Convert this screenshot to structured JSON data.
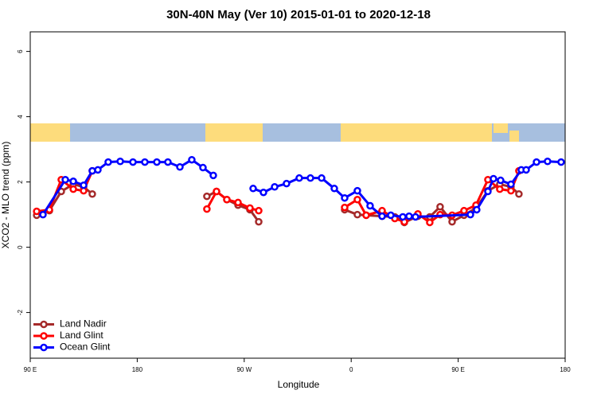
{
  "chart_data": {
    "type": "line",
    "title": "30N-40N May (Ver 10)   2015-01-01 to 2020-12-18",
    "x_label": "Longitude",
    "y_label": "XCO2 - MLO trend (ppm)",
    "xlim": [
      90,
      540
    ],
    "ylim": [
      -3.4,
      6.6
    ],
    "xticks": [
      {
        "value": 90,
        "label": "90 E"
      },
      180,
      {
        "value": 270,
        "label": "90 W"
      },
      {
        "value": 360,
        "label": "0"
      },
      {
        "value": 450,
        "label": "90 E"
      },
      {
        "value": 540,
        "label": "180"
      }
    ],
    "yticks": [
      -2,
      0,
      2,
      4,
      6
    ],
    "legend": "bottom-left",
    "series": [
      {
        "name": "Land Nadir",
        "color": "#a52a2a",
        "x": [
          95.4,
          106.1,
          116.1,
          126.2,
          134.9,
          142.2,
          null,
          238.6,
          246.7,
          255.4,
          264.8,
          274.8,
          282.2,
          null,
          354.5,
          365.2,
          372.6,
          386.0,
          396.7,
          404.7,
          416.1,
          426.1,
          434.8,
          444.9,
          454.9,
          465.0,
          475.0,
          485.0,
          494.4,
          501.1
        ],
        "values": [
          0.98,
          1.12,
          1.71,
          1.93,
          1.85,
          1.63,
          null,
          1.56,
          1.71,
          1.46,
          1.29,
          1.15,
          0.78,
          null,
          1.15,
          1.0,
          0.98,
          0.95,
          0.93,
          0.76,
          0.95,
          0.93,
          1.24,
          0.78,
          0.98,
          1.2,
          1.73,
          1.93,
          1.85,
          1.63
        ]
      },
      {
        "name": "Land Glint",
        "color": "#ff0000",
        "x": [
          95.4,
          106.1,
          116.1,
          126.2,
          134.9,
          142.2,
          null,
          238.6,
          246.7,
          255.4,
          264.8,
          274.8,
          282.2,
          null,
          354.5,
          365.2,
          372.6,
          386.0,
          396.7,
          404.7,
          416.1,
          426.1,
          434.8,
          444.9,
          454.9,
          465.0,
          475.0,
          485.0,
          494.4,
          501.1
        ],
        "values": [
          1.1,
          1.15,
          2.07,
          1.78,
          1.73,
          2.34,
          null,
          1.17,
          1.71,
          1.46,
          1.37,
          1.2,
          1.12,
          null,
          1.22,
          1.46,
          0.98,
          1.12,
          0.88,
          0.78,
          1.02,
          0.76,
          1.0,
          0.98,
          1.12,
          1.29,
          2.07,
          1.78,
          1.73,
          2.34
        ]
      },
      {
        "name": "Ocean Glint",
        "color": "#0000ff",
        "x": [
          100.7,
          119.5,
          126.2,
          134.9,
          142.2,
          146.9,
          155.6,
          165.7,
          176.4,
          186.4,
          196.5,
          205.8,
          215.9,
          225.9,
          235.3,
          244.0,
          null,
          277.5,
          286.2,
          295.6,
          305.6,
          316.3,
          325.7,
          335.1,
          345.8,
          354.5,
          365.2,
          375.9,
          386.0,
          393.3,
          403.4,
          408.7,
          414.1,
          460.3,
          465.6,
          475.0,
          479.7,
          485.7,
          494.4,
          503.1,
          507.2,
          515.9,
          525.2,
          536.6
        ],
        "values": [
          1.0,
          2.07,
          2.02,
          1.9,
          2.34,
          2.37,
          2.61,
          2.63,
          2.61,
          2.61,
          2.61,
          2.61,
          2.46,
          2.68,
          2.44,
          2.2,
          null,
          1.8,
          1.68,
          1.85,
          1.95,
          2.12,
          2.12,
          2.12,
          1.8,
          1.51,
          1.73,
          1.27,
          0.95,
          0.98,
          0.93,
          0.95,
          0.93,
          1.0,
          1.15,
          1.71,
          2.1,
          2.05,
          1.93,
          2.37,
          2.37,
          2.61,
          2.63,
          2.61
        ]
      }
    ]
  }
}
